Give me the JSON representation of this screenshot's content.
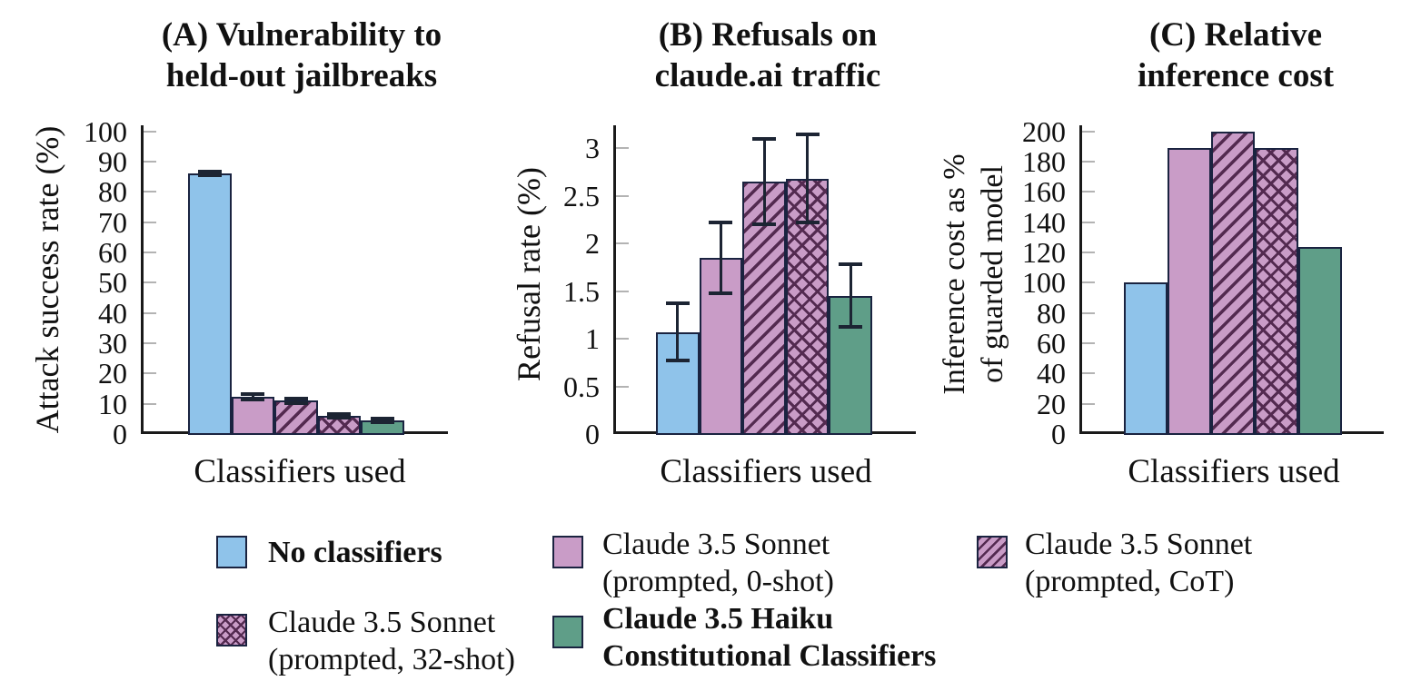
{
  "chart_data": [
    {
      "id": "A",
      "type": "bar",
      "title_lines": [
        "(A) Vulnerability to",
        "held-out jailbreaks"
      ],
      "ylabel_lines": [
        "Attack success rate (%)"
      ],
      "xlabel": "Classifiers used",
      "categories": [
        "No classifiers",
        "Claude 3.5 Sonnet (prompted, 0-shot)",
        "Claude 3.5 Sonnet (prompted, CoT)",
        "Claude 3.5 Sonnet (prompted, 32-shot)",
        "Claude 3.5 Haiku Constitutional Classifiers"
      ],
      "values": [
        86,
        12.4,
        11,
        6,
        4.4
      ],
      "errors": [
        0.6,
        0.9,
        0.8,
        0.7,
        0.6
      ],
      "ylim": [
        0,
        100
      ],
      "ytick_labels": [
        "0",
        "10",
        "20",
        "30",
        "40",
        "50",
        "60",
        "70",
        "80",
        "90",
        "100"
      ],
      "grid": false,
      "legend_position": "below-figure"
    },
    {
      "id": "B",
      "type": "bar",
      "title_lines": [
        "(B) Refusals on",
        "claude.ai traffic"
      ],
      "ylabel_lines": [
        "Refusal rate (%)"
      ],
      "xlabel": "Classifiers used",
      "categories": [
        "No classifiers",
        "Claude 3.5 Sonnet (prompted, 0-shot)",
        "Claude 3.5 Sonnet (prompted, CoT)",
        "Claude 3.5 Sonnet (prompted, 32-shot)",
        "Claude 3.5 Haiku Constitutional Classifiers"
      ],
      "values": [
        1.07,
        1.85,
        2.65,
        2.68,
        1.45
      ],
      "errors": [
        0.3,
        0.37,
        0.45,
        0.46,
        0.33
      ],
      "ylim": [
        0,
        3
      ],
      "ytick_labels": [
        "0",
        "0.5",
        "1",
        "1.5",
        "2",
        "2.5",
        "3"
      ],
      "grid": false,
      "legend_position": "below-figure"
    },
    {
      "id": "C",
      "type": "bar",
      "title_lines": [
        "(C) Relative",
        "inference cost"
      ],
      "ylabel_lines": [
        "Inference cost as %",
        "of guarded model"
      ],
      "xlabel": "Classifiers used",
      "categories": [
        "No classifiers",
        "Claude 3.5 Sonnet (prompted, 0-shot)",
        "Claude 3.5 Sonnet (prompted, CoT)",
        "Claude 3.5 Sonnet (prompted, 32-shot)",
        "Claude 3.5 Haiku Constitutional Classifiers"
      ],
      "values": [
        100,
        189,
        200,
        189,
        123.5
      ],
      "errors": null,
      "ylim": [
        0,
        200
      ],
      "ytick_labels": [
        "0",
        "20",
        "40",
        "60",
        "80",
        "100",
        "120",
        "140",
        "160",
        "180",
        "200"
      ],
      "grid": false,
      "legend_position": "below-figure"
    }
  ],
  "legend": {
    "items": [
      {
        "label_lines": [
          "No classifiers"
        ],
        "bold": true,
        "pattern": "solid",
        "color_key": "blue",
        "slug": "no-classifiers"
      },
      {
        "label_lines": [
          "Claude 3.5 Sonnet",
          "(prompted, 0-shot)"
        ],
        "bold": false,
        "pattern": "solid",
        "color_key": "pink",
        "slug": "sonnet-prompted-0-shot"
      },
      {
        "label_lines": [
          "Claude 3.5 Sonnet",
          "(prompted, CoT)"
        ],
        "bold": false,
        "pattern": "diagonal",
        "color_key": "pink",
        "slug": "sonnet-prompted-cot"
      },
      {
        "label_lines": [
          "Claude 3.5 Sonnet",
          "(prompted, 32-shot)"
        ],
        "bold": false,
        "pattern": "crosshatch",
        "color_key": "pink",
        "slug": "sonnet-prompted-32-shot"
      },
      {
        "label_lines": [
          "Claude 3.5 Haiku",
          "Constitutional Classifiers"
        ],
        "bold": true,
        "pattern": "solid",
        "color_key": "green",
        "slug": "haiku-constitutional-classifiers"
      }
    ]
  },
  "colors": {
    "blue": "#8fc3ea",
    "pink": "#c99cc7",
    "green": "#5f9e88",
    "hatch_line": "#532a50",
    "bar_border": "#1a2340",
    "error_bar": "#1c2433",
    "axis": "#1a1a1a",
    "tick": "#b3b3b3",
    "text": "#111111"
  }
}
